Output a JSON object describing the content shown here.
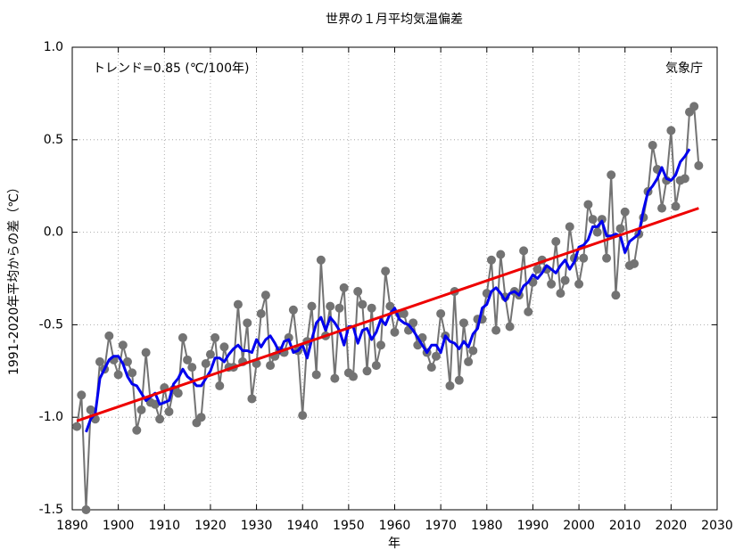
{
  "chart_data": {
    "type": "line",
    "title": "世界の１月平均気温偏差",
    "xlabel": "年",
    "ylabel": "1991-2020年平均からの差（℃）",
    "annotations": [
      "トレンド=0.85 (℃/100年)",
      "気象庁"
    ],
    "x": [
      1891,
      1892,
      1893,
      1894,
      1895,
      1896,
      1897,
      1898,
      1899,
      1900,
      1901,
      1902,
      1903,
      1904,
      1905,
      1906,
      1907,
      1908,
      1909,
      1910,
      1911,
      1912,
      1913,
      1914,
      1915,
      1916,
      1917,
      1918,
      1919,
      1920,
      1921,
      1922,
      1923,
      1924,
      1925,
      1926,
      1927,
      1928,
      1929,
      1930,
      1931,
      1932,
      1933,
      1934,
      1935,
      1936,
      1937,
      1938,
      1939,
      1940,
      1941,
      1942,
      1943,
      1944,
      1945,
      1946,
      1947,
      1948,
      1949,
      1950,
      1951,
      1952,
      1953,
      1954,
      1955,
      1956,
      1957,
      1958,
      1959,
      1960,
      1961,
      1962,
      1963,
      1964,
      1965,
      1966,
      1967,
      1968,
      1969,
      1970,
      1971,
      1972,
      1973,
      1974,
      1975,
      1976,
      1977,
      1978,
      1979,
      1980,
      1981,
      1982,
      1983,
      1984,
      1985,
      1986,
      1987,
      1988,
      1989,
      1990,
      1991,
      1992,
      1993,
      1994,
      1995,
      1996,
      1997,
      1998,
      1999,
      2000,
      2001,
      2002,
      2003,
      2004,
      2005,
      2006,
      2007,
      2008,
      2009,
      2010,
      2011,
      2012,
      2013,
      2014,
      2015,
      2016,
      2017,
      2018,
      2019,
      2020,
      2021,
      2022,
      2023,
      2024,
      2025,
      2026
    ],
    "series": [
      {
        "color": "#737373",
        "markers": true,
        "values": [
          -1.05,
          -0.88,
          -1.5,
          -0.96,
          -1.01,
          -0.7,
          -0.74,
          -0.56,
          -0.69,
          -0.77,
          -0.61,
          -0.7,
          -0.76,
          -1.07,
          -0.96,
          -0.65,
          -0.92,
          -0.93,
          -1.01,
          -0.84,
          -0.97,
          -0.85,
          -0.87,
          -0.57,
          -0.69,
          -0.73,
          -1.03,
          -1.0,
          -0.71,
          -0.66,
          -0.57,
          -0.83,
          -0.62,
          -0.73,
          -0.73,
          -0.39,
          -0.7,
          -0.49,
          -0.9,
          -0.71,
          -0.44,
          -0.34,
          -0.72,
          -0.67,
          -0.64,
          -0.65,
          -0.57,
          -0.42,
          -0.64,
          -0.99,
          -0.59,
          -0.4,
          -0.77,
          -0.15,
          -0.56,
          -0.4,
          -0.79,
          -0.41,
          -0.3,
          -0.76,
          -0.78,
          -0.32,
          -0.39,
          -0.75,
          -0.41,
          -0.72,
          -0.61,
          -0.21,
          -0.4,
          -0.54,
          -0.44,
          -0.44,
          -0.53,
          -0.49,
          -0.61,
          -0.57,
          -0.65,
          -0.73,
          -0.67,
          -0.44,
          -0.56,
          -0.83,
          -0.32,
          -0.8,
          -0.49,
          -0.7,
          -0.64,
          -0.47,
          -0.47,
          -0.33,
          -0.15,
          -0.53,
          -0.12,
          -0.35,
          -0.51,
          -0.32,
          -0.34,
          -0.1,
          -0.43,
          -0.27,
          -0.2,
          -0.15,
          -0.2,
          -0.28,
          -0.05,
          -0.33,
          -0.26,
          0.03,
          -0.14,
          -0.28,
          -0.14,
          0.15,
          0.07,
          0.0,
          0.07,
          -0.14,
          0.31,
          -0.34,
          0.02,
          0.11,
          -0.18,
          -0.17,
          -0.01,
          0.08,
          0.22,
          0.47,
          0.34,
          0.13,
          0.28,
          0.55,
          0.14,
          0.28,
          0.29,
          0.65,
          0.68,
          0.36
        ]
      },
      {
        "color": "#0000ee",
        "markers": false,
        "values": [
          null,
          null,
          -1.08,
          -1.01,
          -0.98,
          -0.79,
          -0.74,
          -0.69,
          -0.67,
          -0.67,
          -0.71,
          -0.78,
          -0.82,
          -0.83,
          -0.87,
          -0.91,
          -0.89,
          -0.87,
          -0.93,
          -0.92,
          -0.91,
          -0.82,
          -0.79,
          -0.74,
          -0.78,
          -0.8,
          -0.83,
          -0.83,
          -0.79,
          -0.75,
          -0.68,
          -0.68,
          -0.7,
          -0.66,
          -0.63,
          -0.61,
          -0.64,
          -0.64,
          -0.65,
          -0.58,
          -0.62,
          -0.58,
          -0.56,
          -0.6,
          -0.65,
          -0.59,
          -0.58,
          -0.65,
          -0.64,
          -0.61,
          -0.68,
          -0.58,
          -0.49,
          -0.46,
          -0.53,
          -0.46,
          -0.49,
          -0.53,
          -0.61,
          -0.51,
          -0.51,
          -0.6,
          -0.53,
          -0.52,
          -0.58,
          -0.54,
          -0.47,
          -0.5,
          -0.44,
          -0.41,
          -0.47,
          -0.49,
          -0.5,
          -0.53,
          -0.57,
          -0.61,
          -0.65,
          -0.61,
          -0.61,
          -0.65,
          -0.56,
          -0.59,
          -0.6,
          -0.63,
          -0.59,
          -0.62,
          -0.55,
          -0.52,
          -0.41,
          -0.39,
          -0.32,
          -0.3,
          -0.33,
          -0.37,
          -0.33,
          -0.32,
          -0.34,
          -0.29,
          -0.27,
          -0.23,
          -0.25,
          -0.22,
          -0.18,
          -0.2,
          -0.22,
          -0.18,
          -0.15,
          -0.2,
          -0.16,
          -0.08,
          -0.07,
          -0.04,
          0.03,
          0.03,
          0.06,
          -0.02,
          -0.02,
          -0.01,
          -0.02,
          -0.11,
          -0.05,
          -0.03,
          -0.01,
          0.12,
          0.22,
          0.25,
          0.29,
          0.35,
          0.29,
          0.28,
          0.31,
          0.38,
          0.41,
          0.45,
          null,
          null
        ]
      }
    ],
    "trend": {
      "color": "#ee0000",
      "x": [
        1891,
        2026
      ],
      "values": [
        -1.02,
        0.13
      ]
    },
    "xlim": [
      1890,
      2030
    ],
    "xticks": [
      1890,
      1900,
      1910,
      1920,
      1930,
      1940,
      1950,
      1960,
      1970,
      1980,
      1990,
      2000,
      2010,
      2020,
      2030
    ],
    "ylim": [
      -1.5,
      1.0
    ],
    "yticks": [
      {
        "value": 1,
        "label": "1.0"
      },
      0.5,
      {
        "value": 0,
        "label": "0.0"
      },
      -0.5,
      {
        "value": -1,
        "label": "-1.0"
      },
      -1.5
    ],
    "grid": true
  }
}
